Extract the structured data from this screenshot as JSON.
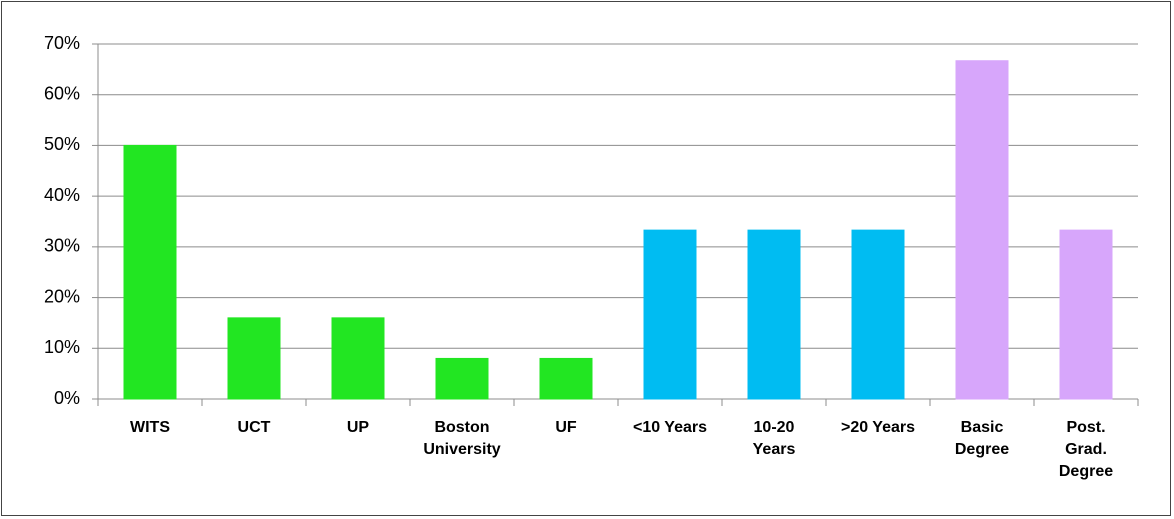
{
  "chart_data": {
    "type": "bar",
    "categories": [
      "WITS",
      "UCT",
      "UP",
      "Boston University",
      "UF",
      "<10 Years",
      "10-20 Years",
      ">20 Years",
      "Basic Degree",
      "Post. Grad. Degree"
    ],
    "values": [
      50,
      16,
      16,
      8,
      8,
      33.3,
      33.3,
      33.3,
      66.7,
      33.3
    ],
    "colors": [
      "#22e622",
      "#22e622",
      "#22e622",
      "#22e622",
      "#22e622",
      "#00bcf2",
      "#00bcf2",
      "#00bcf2",
      "#d7a6fb",
      "#d7a6fb"
    ],
    "ylim": [
      0,
      70
    ],
    "yticks": [
      {
        "value": 0,
        "label": "0%"
      },
      {
        "value": 10,
        "label": "10%"
      },
      {
        "value": 20,
        "label": "20%"
      },
      {
        "value": 30,
        "label": "30%"
      },
      {
        "value": 40,
        "label": "40%"
      },
      {
        "value": 50,
        "label": "50%"
      },
      {
        "value": 60,
        "label": "60%"
      },
      {
        "value": 70,
        "label": "70%"
      }
    ],
    "grid": true
  }
}
